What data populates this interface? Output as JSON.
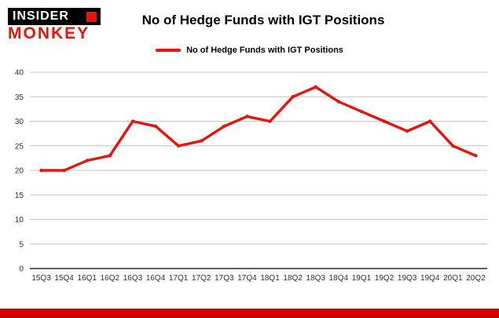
{
  "logo": {
    "line1": "INSIDER",
    "line2": "MONKEY"
  },
  "header": {
    "title": "No of Hedge Funds with IGT Positions"
  },
  "legend": {
    "label": "No of Hedge Funds with IGT Positions"
  },
  "colors": {
    "line": "#e8130b",
    "footer": "#d40000",
    "grid": "#c6c6c6",
    "axis": "#000000",
    "tick_text": "#333333"
  },
  "chart_data": {
    "type": "line",
    "title": "No of Hedge Funds with IGT Positions",
    "xlabel": "",
    "ylabel": "",
    "categories": [
      "15Q3",
      "15Q4",
      "16Q1",
      "16Q2",
      "16Q3",
      "16Q4",
      "17Q1",
      "17Q2",
      "17Q3",
      "17Q4",
      "18Q1",
      "18Q2",
      "18Q3",
      "18Q4",
      "19Q1",
      "19Q2",
      "19Q3",
      "19Q4",
      "20Q1",
      "20Q2"
    ],
    "series": [
      {
        "name": "No of Hedge Funds with IGT Positions",
        "values": [
          20,
          20,
          22,
          23,
          30,
          29,
          25,
          26,
          29,
          31,
          30,
          35,
          37,
          34,
          32,
          30,
          28,
          30,
          25,
          23
        ]
      }
    ],
    "ylim": [
      0,
      40
    ],
    "y_ticks": [
      0,
      5,
      10,
      15,
      20,
      25,
      30,
      35,
      40
    ],
    "grid": true,
    "legend_position": "top"
  }
}
